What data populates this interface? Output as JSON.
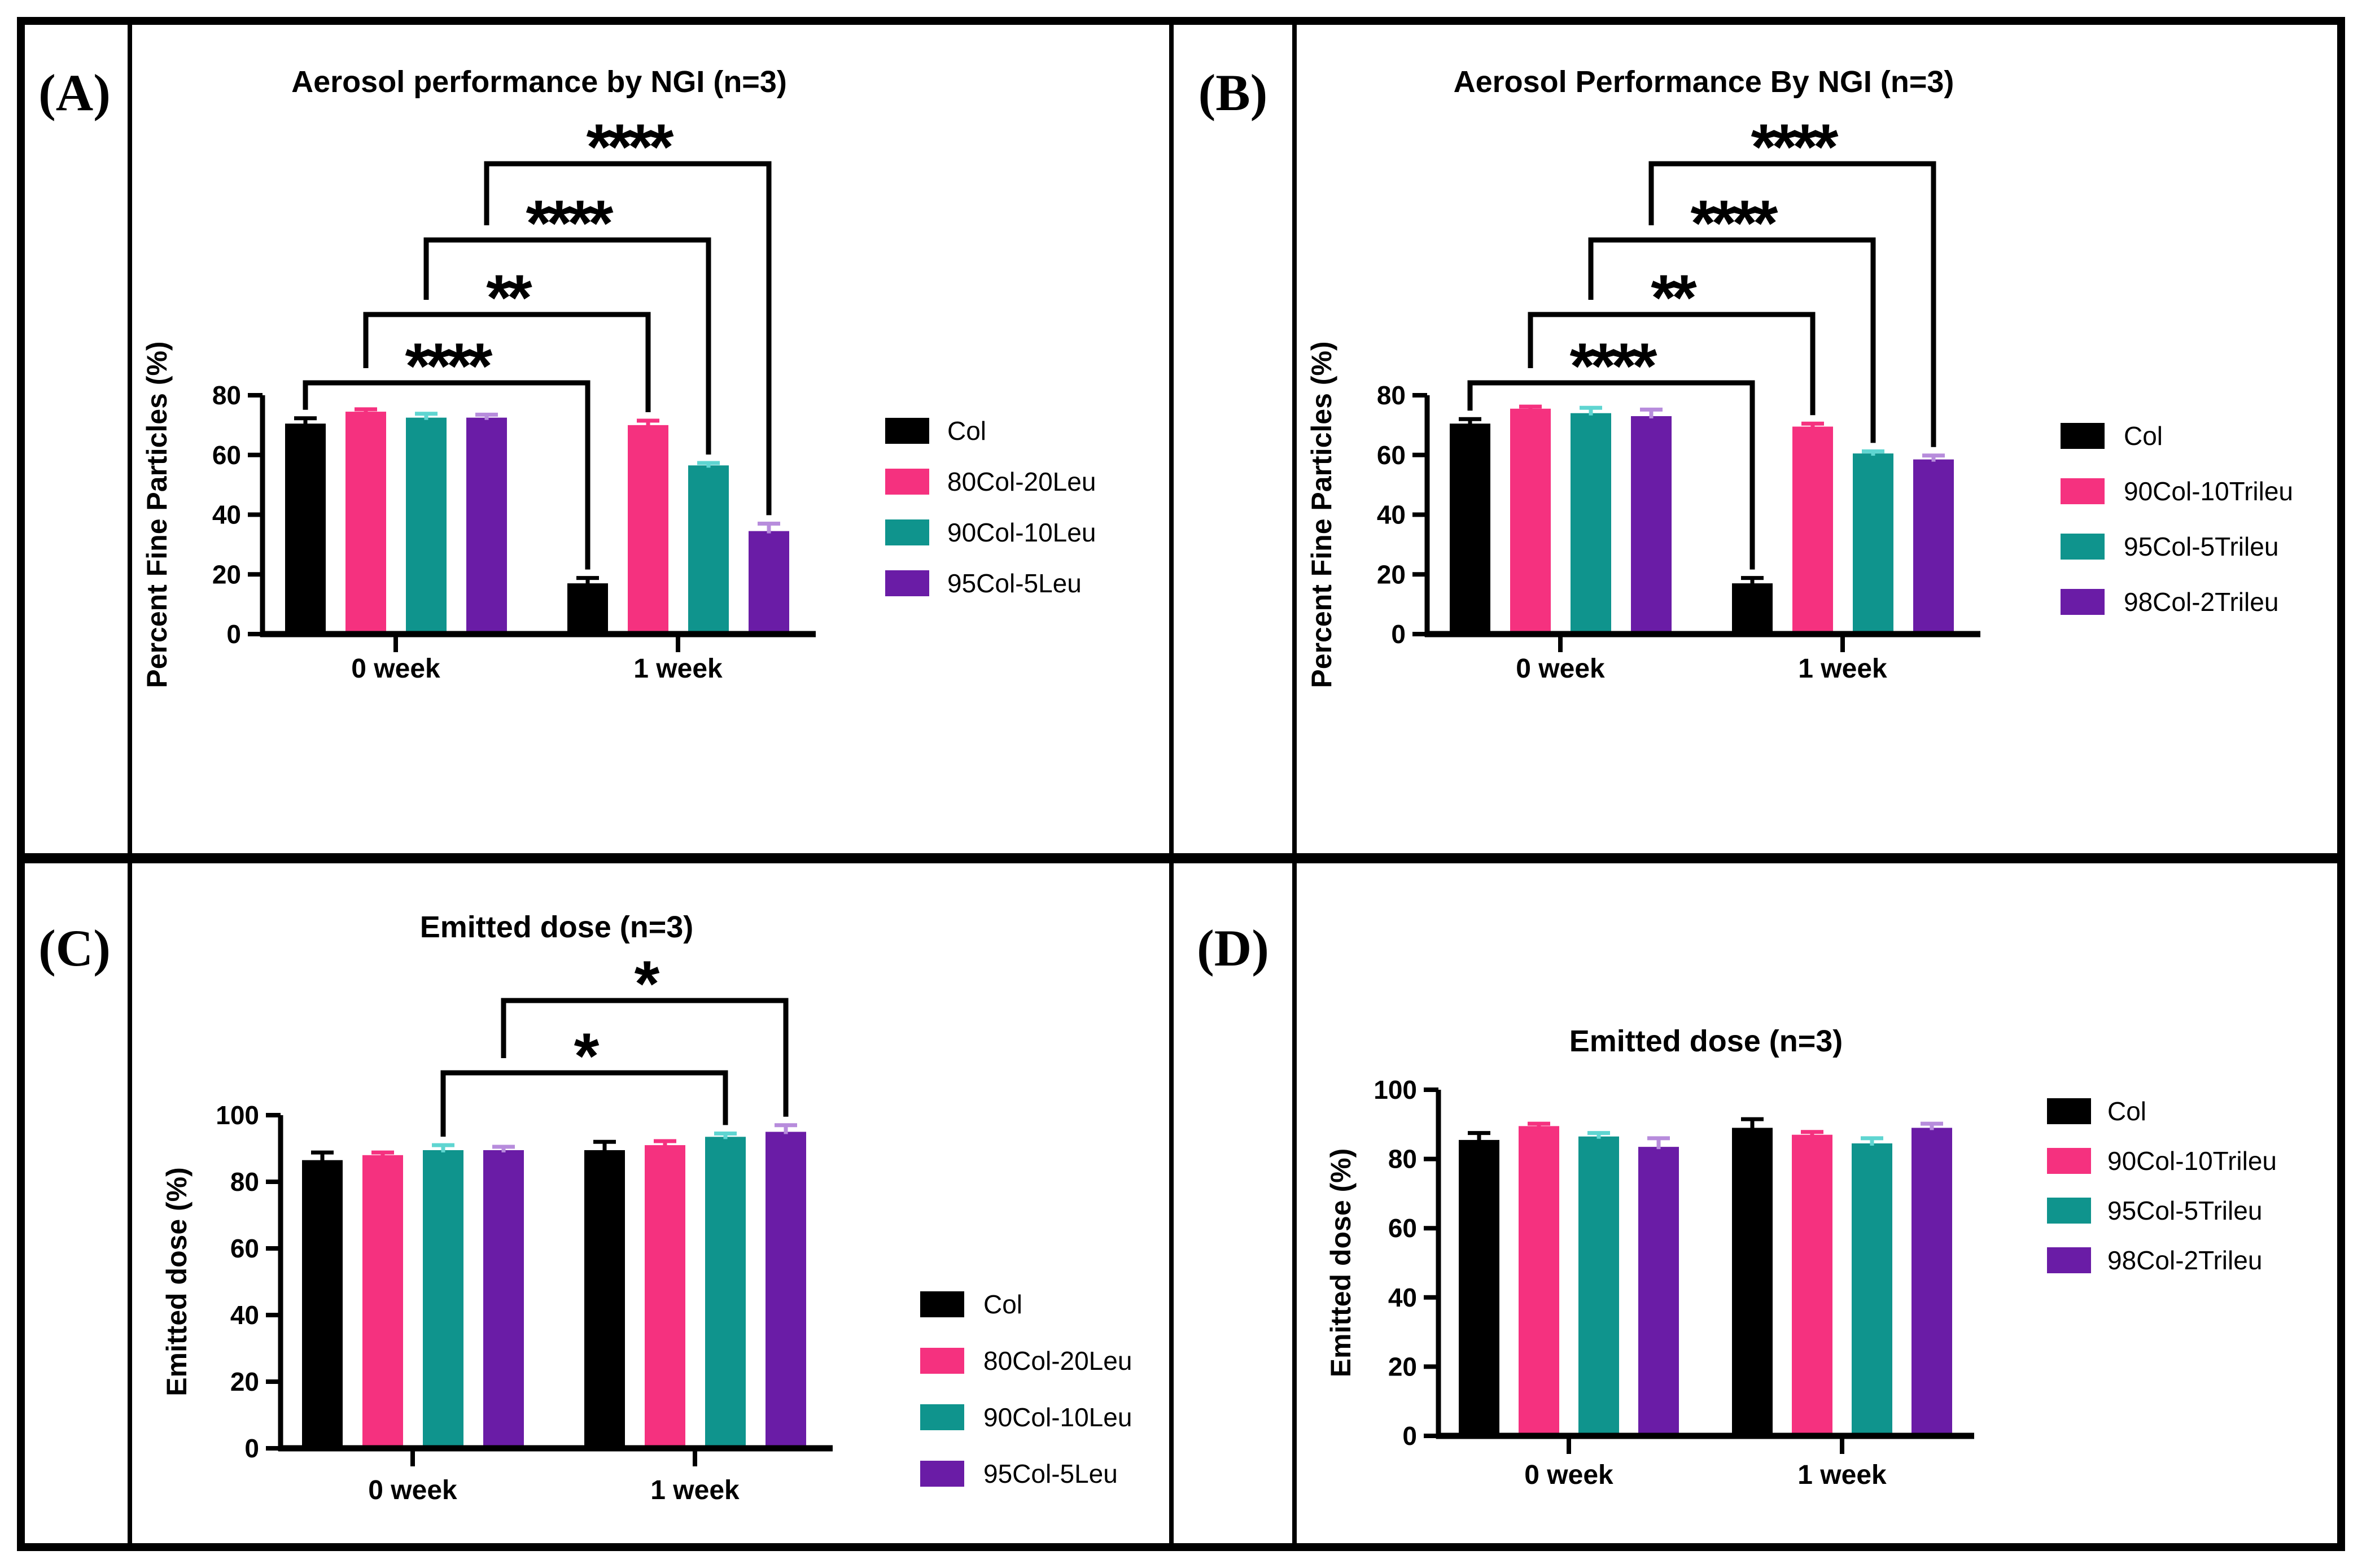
{
  "figure_background": "#ffffff",
  "chart_data": [
    {
      "type": "bar",
      "panel_label": "(A)",
      "title": "Aerosol performance by NGI (n=3)",
      "xlabel": "",
      "ylabel": "Percent Fine Particles (%)",
      "ylim": [
        0,
        80
      ],
      "yticks": [
        0,
        20,
        40,
        60,
        80
      ],
      "ytick_labels": [
        "0",
        "20",
        "40",
        "60",
        "80"
      ],
      "categories": [
        "0 week",
        "1 week"
      ],
      "grid": "off",
      "legend_position": "right",
      "series": [
        {
          "name": "Col",
          "color": "#000000",
          "error_color": "#000000",
          "values": [
            70.5,
            17
          ],
          "errors": [
            1.8,
            1.8
          ]
        },
        {
          "name": "80Col-20Leu",
          "color": "#F5317F",
          "error_color": "#F5317F",
          "values": [
            74.5,
            70
          ],
          "errors": [
            0.8,
            1.5
          ]
        },
        {
          "name": "90Col-10Leu",
          "color": "#0F948D",
          "error_color": "#5FD5D1",
          "values": [
            72.5,
            56.5
          ],
          "errors": [
            1.3,
            0.8
          ]
        },
        {
          "name": "95Col-5Leu",
          "color": "#6A1CA6",
          "error_color": "#B78CDC",
          "values": [
            72.5,
            34.5
          ],
          "errors": [
            1.0,
            2.5
          ]
        }
      ],
      "brackets": [
        {
          "series": 0,
          "stars": "****",
          "compares": "Col 0 week vs Col 1 week"
        },
        {
          "series": 1,
          "stars": "**",
          "compares": "80Col-20Leu 0 week vs 1 week"
        },
        {
          "series": 2,
          "stars": "****",
          "compares": "90Col-10Leu 0 week vs 1 week"
        },
        {
          "series": 3,
          "stars": "****",
          "compares": "95Col-5Leu 0 week vs 1 week"
        }
      ]
    },
    {
      "type": "bar",
      "panel_label": "(B)",
      "title": "Aerosol Performance By NGI (n=3)",
      "xlabel": "",
      "ylabel": "Percent Fine Particles (%)",
      "ylim": [
        0,
        80
      ],
      "yticks": [
        0,
        20,
        40,
        60,
        80
      ],
      "ytick_labels": [
        "0",
        "20",
        "40",
        "60",
        "80"
      ],
      "categories": [
        "0 week",
        "1 week"
      ],
      "grid": "off",
      "legend_position": "right",
      "series": [
        {
          "name": "Col",
          "color": "#000000",
          "error_color": "#000000",
          "values": [
            70.5,
            17
          ],
          "errors": [
            1.5,
            1.8
          ]
        },
        {
          "name": "90Col-10Trileu",
          "color": "#F5317F",
          "error_color": "#F5317F",
          "values": [
            75.5,
            69.5
          ],
          "errors": [
            0.7,
            1.0
          ]
        },
        {
          "name": "95Col-5Trileu",
          "color": "#0F948D",
          "error_color": "#5FD5D1",
          "values": [
            74,
            60.5
          ],
          "errors": [
            1.8,
            0.7
          ]
        },
        {
          "name": "98Col-2Trileu",
          "color": "#6A1CA6",
          "error_color": "#B78CDC",
          "values": [
            73,
            58.5
          ],
          "errors": [
            2.2,
            1.3
          ]
        }
      ],
      "brackets": [
        {
          "series": 0,
          "stars": "****",
          "compares": "Col 0 week vs Col 1 week"
        },
        {
          "series": 1,
          "stars": "**",
          "compares": "90Col-10Trileu 0 week vs 1 week"
        },
        {
          "series": 2,
          "stars": "****",
          "compares": "95Col-5Trileu 0 week vs 1 week"
        },
        {
          "series": 3,
          "stars": "****",
          "compares": "98Col-2Trileu 0 week vs 1 week"
        }
      ]
    },
    {
      "type": "bar",
      "panel_label": "(C)",
      "title": "Emitted dose (n=3)",
      "xlabel": "",
      "ylabel": "Emitted dose (%)",
      "ylim": [
        0,
        100
      ],
      "yticks": [
        0,
        20,
        40,
        60,
        80,
        100
      ],
      "ytick_labels": [
        "0",
        "20",
        "40",
        "60",
        "80",
        "100"
      ],
      "categories": [
        "0 week",
        "1 week"
      ],
      "grid": "off",
      "legend_position": "right",
      "series": [
        {
          "name": "Col",
          "color": "#000000",
          "error_color": "#000000",
          "values": [
            86.5,
            89.5
          ],
          "errors": [
            2.3,
            2.5
          ]
        },
        {
          "name": "80Col-20Leu",
          "color": "#F5317F",
          "error_color": "#F5317F",
          "values": [
            88,
            91
          ],
          "errors": [
            0.8,
            1.2
          ]
        },
        {
          "name": "90Col-10Leu",
          "color": "#0F948D",
          "error_color": "#5FD5D1",
          "values": [
            89.5,
            93.5
          ],
          "errors": [
            1.5,
            1.0
          ]
        },
        {
          "name": "95Col-5Leu",
          "color": "#6A1CA6",
          "error_color": "#B78CDC",
          "values": [
            89.5,
            95
          ],
          "errors": [
            1.0,
            2.0
          ]
        }
      ],
      "brackets": [
        {
          "series": 2,
          "stars": "*",
          "compares": "90Col-10Leu 0 week vs 1 week"
        },
        {
          "series": 3,
          "stars": "*",
          "compares": "95Col-5Leu 0 week vs 1 week"
        }
      ]
    },
    {
      "type": "bar",
      "panel_label": "(D)",
      "title": "Emitted dose (n=3)",
      "xlabel": "",
      "ylabel": "Emitted dose (%)",
      "ylim": [
        0,
        100
      ],
      "yticks": [
        0,
        20,
        40,
        60,
        80,
        100
      ],
      "ytick_labels": [
        "0",
        "20",
        "40",
        "60",
        "80",
        "100"
      ],
      "categories": [
        "0 week",
        "1 week"
      ],
      "grid": "off",
      "legend_position": "right",
      "series": [
        {
          "name": "Col",
          "color": "#000000",
          "error_color": "#000000",
          "values": [
            85.5,
            89
          ],
          "errors": [
            2.0,
            2.5
          ]
        },
        {
          "name": "90Col-10Trileu",
          "color": "#F5317F",
          "error_color": "#F5317F",
          "values": [
            89.5,
            87
          ],
          "errors": [
            0.7,
            0.8
          ]
        },
        {
          "name": "95Col-5Trileu",
          "color": "#0F948D",
          "error_color": "#5FD5D1",
          "values": [
            86.5,
            84.5
          ],
          "errors": [
            1.0,
            1.5
          ]
        },
        {
          "name": "98Col-2Trileu",
          "color": "#6A1CA6",
          "error_color": "#B78CDC",
          "values": [
            83.5,
            89
          ],
          "errors": [
            2.5,
            1.2
          ]
        }
      ],
      "brackets": []
    }
  ]
}
